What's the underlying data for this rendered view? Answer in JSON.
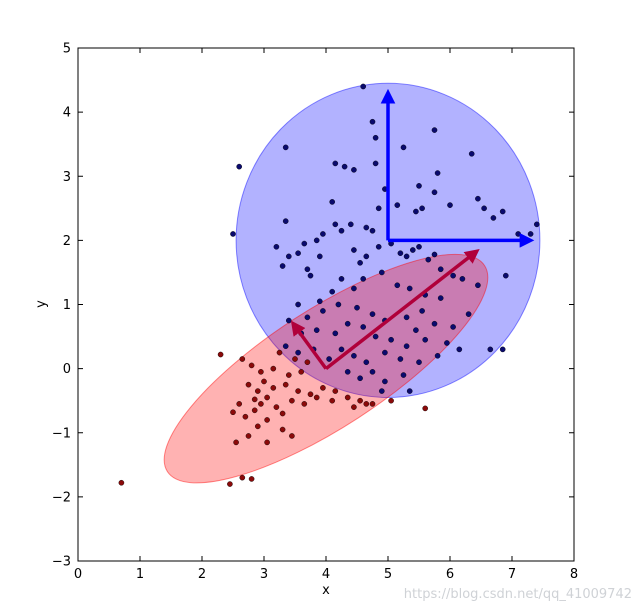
{
  "chart_data": {
    "type": "scatter",
    "xlabel": "x",
    "ylabel": "y",
    "xlim": [
      0,
      8
    ],
    "ylim": [
      -3,
      5
    ],
    "xticks": [
      0,
      1,
      2,
      3,
      4,
      5,
      6,
      7,
      8
    ],
    "yticks": [
      -3,
      -2,
      -1,
      0,
      1,
      2,
      3,
      4,
      5
    ],
    "grid": false,
    "colors": {
      "blue": "#0000ff",
      "red": "#ff0000",
      "blue_point": "#0a0a6e",
      "red_point": "#8b0a0a",
      "arrow_blue": "#0000ff",
      "arrow_red": "#b0003a"
    },
    "shapes": [
      {
        "kind": "circle",
        "cx": 5.0,
        "cy": 2.0,
        "r": 2.45,
        "color": "#0000ff",
        "opacity": 0.3
      },
      {
        "kind": "ellipse",
        "cx": 4.0,
        "cy": 0.0,
        "rx": 3.05,
        "ry": 0.95,
        "angle_deg": 33,
        "color": "#ff0000",
        "opacity": 0.3
      }
    ],
    "arrows": [
      {
        "from": [
          5.0,
          2.0
        ],
        "to": [
          5.0,
          4.45
        ],
        "color": "#0000ff"
      },
      {
        "from": [
          5.0,
          2.0
        ],
        "to": [
          7.45,
          2.0
        ],
        "color": "#0000ff"
      },
      {
        "from": [
          4.0,
          0.0
        ],
        "to": [
          6.55,
          1.92
        ],
        "color": "#b0003a"
      },
      {
        "from": [
          4.0,
          0.0
        ],
        "to": [
          3.38,
          0.82
        ],
        "color": "#b0003a"
      }
    ],
    "series": [
      {
        "color": "#0a0a6e",
        "points": [
          [
            4.6,
            4.4
          ],
          [
            2.6,
            3.15
          ],
          [
            3.35,
            3.45
          ],
          [
            4.15,
            3.2
          ],
          [
            4.3,
            3.15
          ],
          [
            4.45,
            3.1
          ],
          [
            4.75,
            3.85
          ],
          [
            4.8,
            3.6
          ],
          [
            5.25,
            3.45
          ],
          [
            5.75,
            3.72
          ],
          [
            6.35,
            3.35
          ],
          [
            5.8,
            3.05
          ],
          [
            4.8,
            3.2
          ],
          [
            5.5,
            2.85
          ],
          [
            5.75,
            2.75
          ],
          [
            4.95,
            2.8
          ],
          [
            4.1,
            2.6
          ],
          [
            4.25,
            2.15
          ],
          [
            4.15,
            2.25
          ],
          [
            3.95,
            2.1
          ],
          [
            4.4,
            2.25
          ],
          [
            4.65,
            2.2
          ],
          [
            4.75,
            2.15
          ],
          [
            4.85,
            2.5
          ],
          [
            5.15,
            2.55
          ],
          [
            5.45,
            2.45
          ],
          [
            5.55,
            2.5
          ],
          [
            6.0,
            2.55
          ],
          [
            6.45,
            2.65
          ],
          [
            6.55,
            2.5
          ],
          [
            6.7,
            2.35
          ],
          [
            6.85,
            2.45
          ],
          [
            7.1,
            2.1
          ],
          [
            7.3,
            2.1
          ],
          [
            7.4,
            2.25
          ],
          [
            3.35,
            2.3
          ],
          [
            2.5,
            2.1
          ],
          [
            3.2,
            1.9
          ],
          [
            3.65,
            1.95
          ],
          [
            3.85,
            2.0
          ],
          [
            3.4,
            1.75
          ],
          [
            3.55,
            1.8
          ],
          [
            3.9,
            1.75
          ],
          [
            3.7,
            1.55
          ],
          [
            4.45,
            1.85
          ],
          [
            4.55,
            1.65
          ],
          [
            4.65,
            1.75
          ],
          [
            4.85,
            1.9
          ],
          [
            5.05,
            1.95
          ],
          [
            5.2,
            1.8
          ],
          [
            5.3,
            1.75
          ],
          [
            5.4,
            1.85
          ],
          [
            5.5,
            1.9
          ],
          [
            5.65,
            1.7
          ],
          [
            5.75,
            1.78
          ],
          [
            5.85,
            1.55
          ],
          [
            6.05,
            1.45
          ],
          [
            6.2,
            1.4
          ],
          [
            6.45,
            1.3
          ],
          [
            6.9,
            1.45
          ],
          [
            3.3,
            1.6
          ],
          [
            3.75,
            1.45
          ],
          [
            3.9,
            1.05
          ],
          [
            4.1,
            1.2
          ],
          [
            4.25,
            1.4
          ],
          [
            4.45,
            1.25
          ],
          [
            4.6,
            1.4
          ],
          [
            4.9,
            1.5
          ],
          [
            5.15,
            1.3
          ],
          [
            5.35,
            1.25
          ],
          [
            5.6,
            1.15
          ],
          [
            5.85,
            1.1
          ],
          [
            3.55,
            1.0
          ],
          [
            3.7,
            0.8
          ],
          [
            3.95,
            0.9
          ],
          [
            4.2,
            1.0
          ],
          [
            4.5,
            0.95
          ],
          [
            4.75,
            0.85
          ],
          [
            4.95,
            0.75
          ],
          [
            5.3,
            0.8
          ],
          [
            5.55,
            0.9
          ],
          [
            5.75,
            0.7
          ],
          [
            6.05,
            0.65
          ],
          [
            6.3,
            0.85
          ],
          [
            3.4,
            0.75
          ],
          [
            3.6,
            0.55
          ],
          [
            3.85,
            0.6
          ],
          [
            4.15,
            0.55
          ],
          [
            4.35,
            0.7
          ],
          [
            4.6,
            0.65
          ],
          [
            4.8,
            0.5
          ],
          [
            5.05,
            0.45
          ],
          [
            5.3,
            0.35
          ],
          [
            5.45,
            0.6
          ],
          [
            5.6,
            0.45
          ],
          [
            5.95,
            0.4
          ],
          [
            3.35,
            0.35
          ],
          [
            3.55,
            0.25
          ],
          [
            3.8,
            0.3
          ],
          [
            4.05,
            0.15
          ],
          [
            4.25,
            0.3
          ],
          [
            4.45,
            0.2
          ],
          [
            4.65,
            0.1
          ],
          [
            4.95,
            0.25
          ],
          [
            5.2,
            0.15
          ],
          [
            5.5,
            0.1
          ],
          [
            5.8,
            0.2
          ],
          [
            6.15,
            0.3
          ],
          [
            6.65,
            0.3
          ],
          [
            6.85,
            0.3
          ],
          [
            4.35,
            -0.05
          ],
          [
            4.55,
            -0.15
          ],
          [
            4.75,
            -0.05
          ],
          [
            4.95,
            -0.2
          ],
          [
            5.25,
            -0.1
          ],
          [
            5.35,
            -0.35
          ],
          [
            4.9,
            -0.35
          ]
        ]
      },
      {
        "color": "#8b0a0a",
        "points": [
          [
            0.7,
            -1.78
          ],
          [
            2.3,
            0.22
          ],
          [
            2.45,
            -1.8
          ],
          [
            2.65,
            -1.7
          ],
          [
            2.8,
            -1.72
          ],
          [
            2.5,
            -0.68
          ],
          [
            2.6,
            -0.55
          ],
          [
            2.7,
            -0.75
          ],
          [
            2.85,
            -0.65
          ],
          [
            2.95,
            -0.55
          ],
          [
            3.05,
            -0.45
          ],
          [
            3.2,
            -0.6
          ],
          [
            2.55,
            -1.15
          ],
          [
            2.75,
            -1.05
          ],
          [
            2.9,
            -0.9
          ],
          [
            3.05,
            -1.15
          ],
          [
            3.3,
            -0.95
          ],
          [
            3.45,
            -1.05
          ],
          [
            2.65,
            0.15
          ],
          [
            2.8,
            0.05
          ],
          [
            2.95,
            -0.05
          ],
          [
            3.15,
            0.0
          ],
          [
            3.4,
            -0.1
          ],
          [
            3.6,
            -0.05
          ],
          [
            2.75,
            -0.25
          ],
          [
            2.9,
            -0.35
          ],
          [
            3.0,
            -0.2
          ],
          [
            3.15,
            -0.3
          ],
          [
            3.35,
            -0.25
          ],
          [
            3.55,
            -0.35
          ],
          [
            3.75,
            -0.4
          ],
          [
            3.95,
            -0.3
          ],
          [
            4.15,
            -0.35
          ],
          [
            4.35,
            -0.45
          ],
          [
            4.55,
            -0.5
          ],
          [
            4.65,
            -0.55
          ],
          [
            3.45,
            -0.5
          ],
          [
            3.65,
            -0.55
          ],
          [
            3.85,
            -0.45
          ],
          [
            4.1,
            -0.5
          ],
          [
            4.45,
            -0.6
          ],
          [
            4.75,
            -0.55
          ],
          [
            5.05,
            -0.5
          ],
          [
            3.25,
            0.25
          ],
          [
            3.5,
            0.15
          ],
          [
            3.7,
            0.1
          ],
          [
            2.85,
            -0.48
          ],
          [
            3.05,
            -0.8
          ],
          [
            3.3,
            -0.7
          ],
          [
            5.6,
            -0.62
          ]
        ]
      }
    ]
  },
  "watermark": "https://blog.csdn.net/qq_41009742"
}
